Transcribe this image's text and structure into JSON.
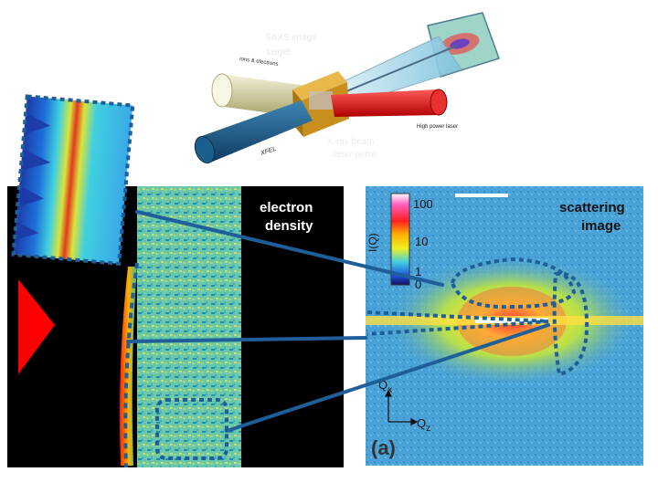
{
  "setup": {
    "label_ions": "ions & electrons",
    "label_xfel": "XFEL",
    "label_laser": "High power laser",
    "faded_text_1": "SAXS image",
    "faded_text_2": "target",
    "faded_text_3": "X-ray beam",
    "faded_text_4": "laser pulse"
  },
  "density_panel": {
    "title_line1": "electron",
    "title_line2": "density"
  },
  "scattering_panel": {
    "title_line1": "scattering",
    "title_line2": "image",
    "panel_label": "(a)",
    "colorbar_title": "I(Q)",
    "colorbar_ticks": [
      "100",
      "10",
      "1",
      "0"
    ],
    "axis_qx": "Q",
    "axis_qx_sub": "x",
    "axis_qz": "Q",
    "axis_qz_sub": "z"
  },
  "colors": {
    "connector": "#1f5f99",
    "laser_arrow": "#ff0000",
    "background_blue": "#4aa3d8"
  }
}
